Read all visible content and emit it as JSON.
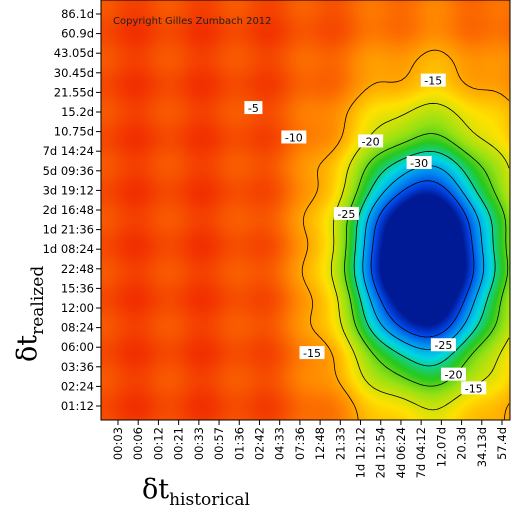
{
  "chart_data": {
    "type": "heatmap",
    "title": "",
    "copyright": "Copyright Gilles Zumbach 2012",
    "xlabel": {
      "symbol": "δt",
      "subscript": "historical"
    },
    "ylabel": {
      "symbol": "δt",
      "subscript": "realized"
    },
    "x_ticks": [
      "00:03",
      "00:06",
      "00:12",
      "00:21",
      "00:33",
      "00:57",
      "01:36",
      "02:42",
      "04:33",
      "07:36",
      "12:48",
      "21:33",
      "1d 12:12",
      "2d 12:54",
      "4d 06:24",
      "7d 04:12",
      "12.07d",
      "20.3d",
      "34.13d",
      "57.4d"
    ],
    "y_ticks": [
      "01:12",
      "02:24",
      "03:36",
      "06:00",
      "08:24",
      "12:00",
      "15:36",
      "22:48",
      "1d 08:24",
      "1d 21:36",
      "2d 16:48",
      "3d 19:12",
      "5d 09:36",
      "7d 14:24",
      "10.75d",
      "15.2d",
      "21.55d",
      "30.45d",
      "43.05d",
      "60.9d",
      "86.1d"
    ],
    "contour_levels": [
      -5,
      -10,
      -15,
      -20,
      -25,
      -30
    ],
    "contour_labels": [
      {
        "text": "-5",
        "level": -5,
        "x": 6.7,
        "y": 15.2
      },
      {
        "text": "-10",
        "level": -10,
        "x": 8.7,
        "y": 13.7
      },
      {
        "text": "-15",
        "level": -15,
        "x": 15.6,
        "y": 16.6
      },
      {
        "text": "-20",
        "level": -20,
        "x": 12.5,
        "y": 13.5
      },
      {
        "text": "-30",
        "level": -30,
        "x": 14.9,
        "y": 12.4
      },
      {
        "text": "-25",
        "level": -25,
        "x": 11.3,
        "y": 9.8
      },
      {
        "text": "-15",
        "level": -15,
        "x": 9.6,
        "y": 2.7
      },
      {
        "text": "-25",
        "level": -25,
        "x": 16.1,
        "y": 3.1
      },
      {
        "text": "-20",
        "level": -20,
        "x": 16.6,
        "y": 1.6
      },
      {
        "text": "-15",
        "level": -15,
        "x": 17.6,
        "y": 0.9
      }
    ],
    "colorscale": [
      "#ee1b00",
      "#ff9900",
      "#ffee00",
      "#33cc11",
      "#00ddee",
      "#0055ee",
      "#001a99"
    ],
    "value_range": [
      -35,
      2
    ],
    "xlim": [
      0,
      19
    ],
    "ylim": [
      0,
      20
    ],
    "grid": false,
    "legend": "none"
  }
}
